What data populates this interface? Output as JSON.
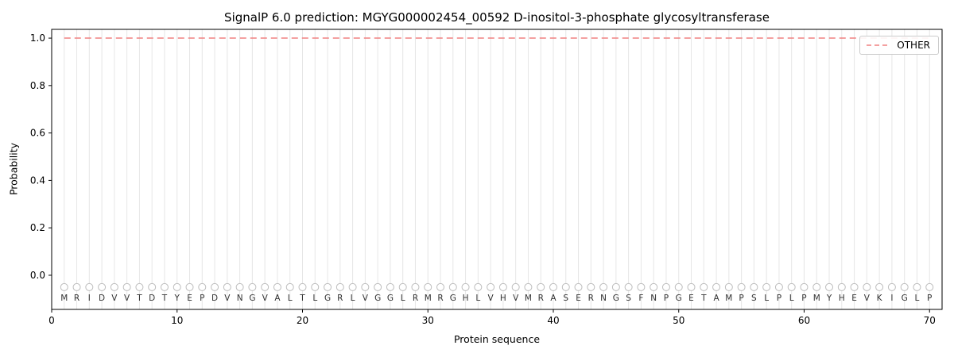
{
  "chart_data": {
    "type": "line",
    "title": "SignalP 6.0 prediction: MGYG000002454_00592 D-inositol-3-phosphate glycosyltransferase",
    "xlabel": "Protein sequence",
    "ylabel": "Probability",
    "xlim": [
      0,
      71
    ],
    "ylim": [
      -0.144,
      1.037
    ],
    "xticks": [
      0,
      10,
      20,
      30,
      40,
      50,
      60,
      70
    ],
    "yticks": [
      0.0,
      0.2,
      0.4,
      0.6,
      0.8,
      1.0
    ],
    "grid": "vertical line at every residue position",
    "sequence": "MRIDVVTDTYEPDVNGVALTLGRLVGGLRMRGHLVHVMRASERNGSFNPGETAMPSLPLPMYHEVKIGLP",
    "series": [
      {
        "name": "OTHER",
        "style": "dashed",
        "color": "#f08080",
        "constant_value": 1.0,
        "x_range": [
          1,
          70
        ]
      }
    ],
    "residue_markers": {
      "shape": "circle",
      "y": -0.05,
      "color": "#bdbdbd"
    },
    "legend": {
      "position": "upper right",
      "entries": [
        {
          "label": "OTHER",
          "color": "#f08080",
          "dash": true
        }
      ]
    },
    "colors": {
      "grid": "#e6e6e6",
      "axis": "#000000",
      "text": "#000000",
      "marker": "#bdbdbd",
      "letter": "#333333"
    }
  }
}
